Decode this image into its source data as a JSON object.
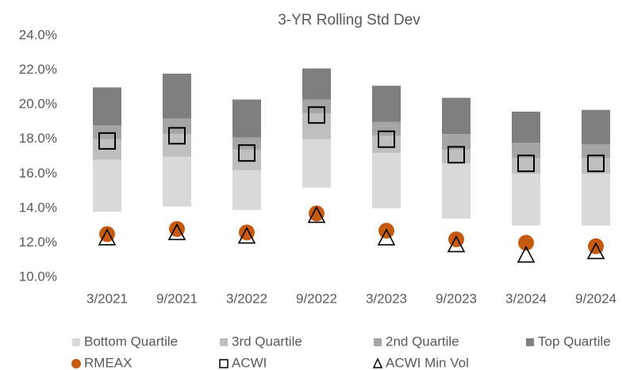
{
  "chart_data": {
    "type": "bar",
    "title": "3-YR Rolling Std Dev",
    "categories": [
      "3/2021",
      "9/2021",
      "3/2022",
      "9/2022",
      "3/2023",
      "9/2023",
      "3/2024",
      "9/2024"
    ],
    "base": [
      13.8,
      14.1,
      13.9,
      15.2,
      14.0,
      13.4,
      13.0,
      13.0
    ],
    "series": [
      {
        "name": "Bottom Quartile",
        "color": "#d9d9d9",
        "values": [
          3.0,
          2.9,
          2.3,
          2.8,
          3.2,
          3.2,
          3.0,
          3.0
        ]
      },
      {
        "name": "3rd Quartile",
        "color": "#bfbfbf",
        "values": [
          1.2,
          1.3,
          1.2,
          1.5,
          1.0,
          0.8,
          0.9,
          0.9
        ]
      },
      {
        "name": "2nd Quartile",
        "color": "#a5a5a5",
        "values": [
          0.8,
          0.9,
          0.7,
          0.8,
          0.8,
          0.9,
          0.9,
          0.8
        ]
      },
      {
        "name": "Top Quartile",
        "color": "#7f7f7f",
        "values": [
          2.2,
          2.6,
          2.2,
          1.8,
          2.1,
          2.1,
          1.8,
          2.0
        ]
      },
      {
        "name": "RMEAX",
        "color": "#c55a11",
        "marker": "circle",
        "values": [
          12.5,
          12.8,
          12.6,
          13.7,
          12.7,
          12.2,
          12.0,
          11.8
        ]
      },
      {
        "name": "ACWI",
        "color": "#000000",
        "marker": "square",
        "values": [
          17.9,
          18.2,
          17.2,
          19.4,
          18.0,
          17.1,
          16.6,
          16.6
        ]
      },
      {
        "name": "ACWI Min Vol",
        "color": "#000000",
        "marker": "triangle",
        "values": [
          12.3,
          12.6,
          12.4,
          13.6,
          12.3,
          11.9,
          11.3,
          11.5
        ]
      }
    ],
    "ylim": [
      10,
      24
    ],
    "yticks": [
      {
        "value": 10,
        "label": "10.0%"
      },
      {
        "value": 12,
        "label": "12.0%"
      },
      {
        "value": 14,
        "label": "14.0%"
      },
      {
        "value": 16,
        "label": "16.0%"
      },
      {
        "value": 18,
        "label": "18.0%"
      },
      {
        "value": 20,
        "label": "20.0%"
      },
      {
        "value": 22,
        "label": "22.0%"
      },
      {
        "value": 24,
        "label": "24.0%"
      }
    ]
  }
}
